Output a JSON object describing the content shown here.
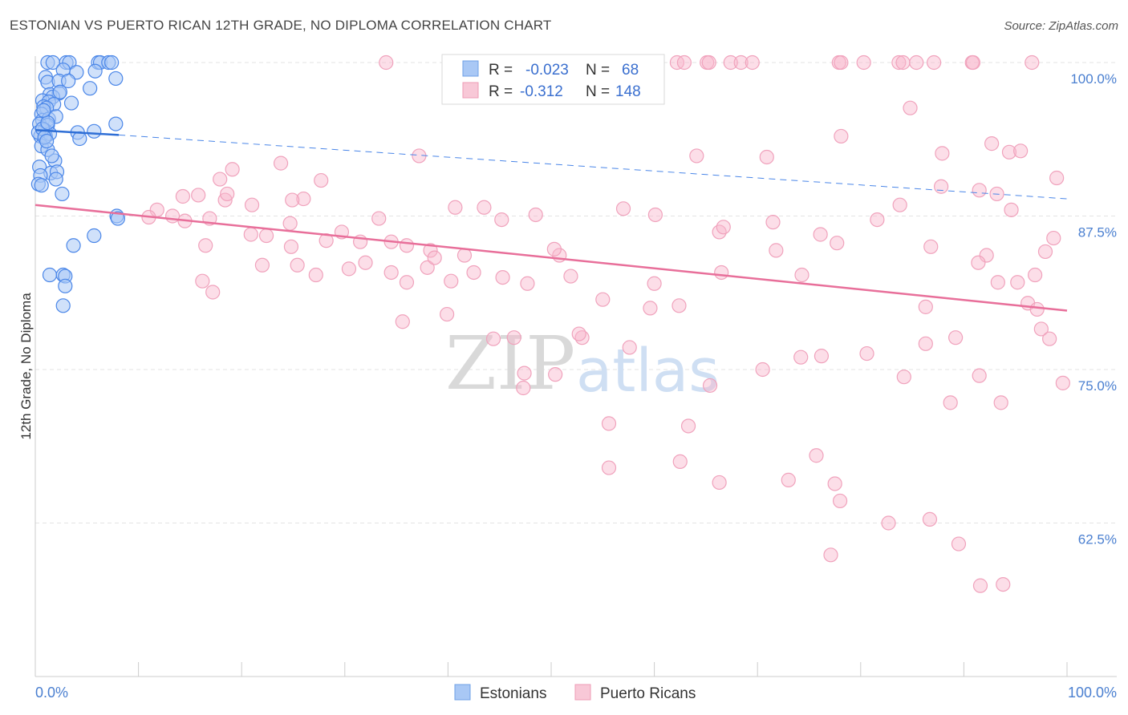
{
  "header": {
    "title": "ESTONIAN VS PUERTO RICAN 12TH GRADE, NO DIPLOMA CORRELATION CHART",
    "source": "Source: ZipAtlas.com"
  },
  "watermark": {
    "zip": "ZIP",
    "atlas": "atlas"
  },
  "legend": {
    "rows": [
      {
        "r_label": "R =",
        "r_value": "-0.023",
        "n_label": "N =",
        "n_value": "68",
        "color": "#a9c8f5"
      },
      {
        "r_label": "R =",
        "r_value": "-0.312",
        "n_label": "N =",
        "n_value": "148",
        "color": "#f8b6cb"
      }
    ]
  },
  "bottom_legend": [
    {
      "label": "Estonians",
      "color": "#a9c8f5"
    },
    {
      "label": "Puerto Ricans",
      "color": "#f8b6cb"
    }
  ],
  "chart_data": {
    "type": "scatter",
    "title": "ESTONIAN VS PUERTO RICAN 12TH GRADE, NO DIPLOMA CORRELATION CHART",
    "xlabel": "",
    "ylabel": "12th Grade, No Diploma",
    "xlim": [
      0,
      100
    ],
    "ylim": [
      50,
      101.5
    ],
    "x_tick_labels": [
      "0.0%",
      "100.0%"
    ],
    "y_ticks": [
      62.5,
      75.0,
      87.5,
      100.0
    ],
    "y_tick_labels": [
      "62.5%",
      "75.0%",
      "87.5%",
      "100.0%"
    ],
    "grid": true,
    "legend_position": "top-center",
    "colors": {
      "estonians": "#4a86e8",
      "puerto_ricans": "#e8739a"
    },
    "series": [
      {
        "name": "Estonians",
        "trend": {
          "x0": 0,
          "y0": 94.5,
          "x1": 8.1,
          "y1": 94.1,
          "dash_to_x": 100,
          "dash_to_y": 88.9
        },
        "points": [
          [
            1.2,
            100
          ],
          [
            1.7,
            100
          ],
          [
            3.0,
            100
          ],
          [
            3.3,
            100
          ],
          [
            6.1,
            100
          ],
          [
            6.3,
            100
          ],
          [
            7.1,
            100
          ],
          [
            7.4,
            100
          ],
          [
            1.0,
            98.8
          ],
          [
            2.7,
            99.4
          ],
          [
            4.0,
            99.2
          ],
          [
            5.8,
            99.3
          ],
          [
            7.8,
            98.7
          ],
          [
            1.2,
            98.4
          ],
          [
            2.3,
            98.5
          ],
          [
            3.2,
            98.5
          ],
          [
            5.3,
            97.9
          ],
          [
            1.4,
            97.4
          ],
          [
            2.3,
            97.5
          ],
          [
            1.7,
            97.2
          ],
          [
            0.7,
            96.9
          ],
          [
            1.3,
            96.8
          ],
          [
            1.8,
            96.6
          ],
          [
            0.8,
            96.4
          ],
          [
            1.1,
            96.3
          ],
          [
            0.6,
            95.8
          ],
          [
            0.7,
            95.3
          ],
          [
            1.3,
            95.4
          ],
          [
            2.0,
            95.6
          ],
          [
            0.4,
            95.0
          ],
          [
            1.2,
            94.9
          ],
          [
            0.9,
            94.5
          ],
          [
            0.5,
            94.0
          ],
          [
            1.0,
            94.0
          ],
          [
            1.4,
            94.2
          ],
          [
            0.3,
            94.3
          ],
          [
            0.7,
            94.6
          ],
          [
            4.1,
            94.3
          ],
          [
            5.7,
            94.4
          ],
          [
            7.8,
            95.0
          ],
          [
            4.3,
            93.8
          ],
          [
            0.6,
            93.2
          ],
          [
            1.2,
            92.9
          ],
          [
            1.9,
            92.0
          ],
          [
            0.4,
            91.5
          ],
          [
            1.5,
            91.0
          ],
          [
            2.1,
            91.1
          ],
          [
            0.5,
            90.8
          ],
          [
            2.0,
            90.5
          ],
          [
            0.3,
            90.1
          ],
          [
            0.6,
            90.0
          ],
          [
            2.6,
            89.3
          ],
          [
            7.9,
            87.5
          ],
          [
            8.0,
            87.3
          ],
          [
            5.7,
            85.9
          ],
          [
            3.7,
            85.1
          ],
          [
            1.4,
            82.7
          ],
          [
            2.7,
            82.7
          ],
          [
            2.9,
            82.6
          ],
          [
            2.9,
            81.8
          ],
          [
            2.7,
            80.2
          ],
          [
            0.9,
            93.9
          ],
          [
            1.6,
            92.4
          ],
          [
            2.4,
            97.6
          ],
          [
            3.5,
            96.7
          ],
          [
            1.2,
            95.1
          ],
          [
            0.8,
            96.1
          ],
          [
            1.1,
            93.6
          ]
        ]
      },
      {
        "name": "Puerto Ricans",
        "trend": {
          "x0": 0,
          "y0": 88.4,
          "x1": 100,
          "y1": 79.8
        },
        "points": [
          [
            34.0,
            100
          ],
          [
            59.8,
            100
          ],
          [
            62.2,
            100
          ],
          [
            62.9,
            100
          ],
          [
            65.1,
            100
          ],
          [
            65.3,
            100
          ],
          [
            67.4,
            100
          ],
          [
            68.4,
            100
          ],
          [
            69.5,
            100
          ],
          [
            77.9,
            100
          ],
          [
            78.1,
            100
          ],
          [
            80.3,
            100
          ],
          [
            83.7,
            100
          ],
          [
            84.1,
            100
          ],
          [
            85.4,
            100
          ],
          [
            87.1,
            100
          ],
          [
            90.8,
            100
          ],
          [
            90.9,
            100
          ],
          [
            96.6,
            100
          ],
          [
            84.8,
            96.3
          ],
          [
            78.1,
            94.0
          ],
          [
            87.9,
            92.6
          ],
          [
            92.7,
            93.4
          ],
          [
            64.1,
            92.4
          ],
          [
            70.9,
            92.3
          ],
          [
            94.4,
            92.7
          ],
          [
            19.1,
            91.3
          ],
          [
            17.9,
            90.5
          ],
          [
            23.8,
            91.8
          ],
          [
            27.7,
            90.4
          ],
          [
            37.2,
            92.4
          ],
          [
            26.0,
            88.9
          ],
          [
            18.4,
            88.8
          ],
          [
            11.8,
            88.0
          ],
          [
            14.3,
            89.1
          ],
          [
            15.8,
            89.2
          ],
          [
            18.6,
            89.3
          ],
          [
            21.0,
            88.4
          ],
          [
            24.9,
            88.8
          ],
          [
            33.3,
            87.3
          ],
          [
            40.7,
            88.2
          ],
          [
            43.5,
            88.2
          ],
          [
            45.2,
            87.2
          ],
          [
            48.5,
            87.6
          ],
          [
            57.0,
            88.1
          ],
          [
            60.1,
            87.6
          ],
          [
            66.3,
            86.2
          ],
          [
            71.5,
            87.0
          ],
          [
            81.6,
            87.2
          ],
          [
            83.8,
            88.4
          ],
          [
            87.8,
            89.9
          ],
          [
            91.5,
            89.6
          ],
          [
            93.2,
            89.3
          ],
          [
            11.0,
            87.4
          ],
          [
            13.3,
            87.5
          ],
          [
            14.5,
            87.1
          ],
          [
            16.9,
            87.3
          ],
          [
            20.9,
            86.0
          ],
          [
            22.4,
            85.9
          ],
          [
            24.7,
            86.9
          ],
          [
            24.8,
            85.0
          ],
          [
            28.2,
            85.5
          ],
          [
            29.7,
            86.2
          ],
          [
            31.5,
            85.4
          ],
          [
            34.5,
            85.4
          ],
          [
            36.0,
            85.1
          ],
          [
            38.3,
            84.7
          ],
          [
            41.6,
            84.3
          ],
          [
            50.8,
            84.3
          ],
          [
            50.3,
            84.8
          ],
          [
            66.7,
            86.6
          ],
          [
            71.8,
            84.7
          ],
          [
            76.1,
            86.0
          ],
          [
            77.7,
            85.3
          ],
          [
            86.8,
            85.0
          ],
          [
            92.2,
            84.3
          ],
          [
            91.4,
            83.7
          ],
          [
            93.3,
            82.1
          ],
          [
            95.2,
            82.1
          ],
          [
            96.2,
            80.4
          ],
          [
            97.1,
            79.9
          ],
          [
            22.0,
            83.5
          ],
          [
            25.4,
            83.5
          ],
          [
            27.2,
            82.7
          ],
          [
            30.4,
            83.2
          ],
          [
            32.0,
            83.7
          ],
          [
            34.5,
            82.9
          ],
          [
            36.0,
            82.1
          ],
          [
            38.0,
            83.3
          ],
          [
            38.7,
            84.1
          ],
          [
            40.3,
            82.2
          ],
          [
            42.5,
            82.9
          ],
          [
            45.3,
            82.5
          ],
          [
            47.7,
            82.0
          ],
          [
            51.9,
            82.6
          ],
          [
            55.0,
            80.7
          ],
          [
            60.0,
            82.0
          ],
          [
            66.5,
            82.9
          ],
          [
            74.3,
            82.7
          ],
          [
            86.3,
            80.1
          ],
          [
            17.2,
            81.3
          ],
          [
            16.5,
            85.1
          ],
          [
            16.2,
            82.2
          ],
          [
            35.6,
            78.9
          ],
          [
            39.9,
            79.5
          ],
          [
            44.4,
            77.5
          ],
          [
            46.4,
            77.6
          ],
          [
            47.4,
            74.7
          ],
          [
            53.0,
            77.6
          ],
          [
            52.7,
            77.9
          ],
          [
            57.6,
            76.8
          ],
          [
            59.6,
            80.0
          ],
          [
            62.4,
            80.2
          ],
          [
            65.4,
            73.7
          ],
          [
            70.5,
            75.0
          ],
          [
            74.2,
            76.0
          ],
          [
            76.2,
            76.1
          ],
          [
            80.6,
            76.3
          ],
          [
            84.2,
            74.4
          ],
          [
            86.3,
            77.1
          ],
          [
            88.7,
            72.3
          ],
          [
            89.2,
            77.6
          ],
          [
            91.5,
            74.5
          ],
          [
            93.6,
            72.3
          ],
          [
            97.5,
            78.3
          ],
          [
            98.3,
            77.5
          ],
          [
            99.6,
            73.9
          ],
          [
            47.3,
            73.5
          ],
          [
            50.4,
            74.6
          ],
          [
            55.6,
            70.6
          ],
          [
            55.6,
            67.0
          ],
          [
            62.5,
            67.5
          ],
          [
            63.3,
            70.4
          ],
          [
            66.3,
            65.8
          ],
          [
            73.0,
            66.0
          ],
          [
            75.7,
            68.0
          ],
          [
            77.5,
            65.7
          ],
          [
            78.0,
            64.3
          ],
          [
            82.7,
            62.5
          ],
          [
            86.7,
            62.8
          ],
          [
            89.5,
            60.8
          ],
          [
            91.6,
            57.4
          ],
          [
            93.8,
            57.5
          ],
          [
            77.1,
            59.9
          ],
          [
            99.0,
            90.6
          ],
          [
            98.7,
            85.7
          ],
          [
            94.6,
            88.0
          ],
          [
            95.5,
            92.8
          ],
          [
            97.9,
            84.6
          ],
          [
            96.9,
            82.7
          ]
        ]
      }
    ]
  }
}
